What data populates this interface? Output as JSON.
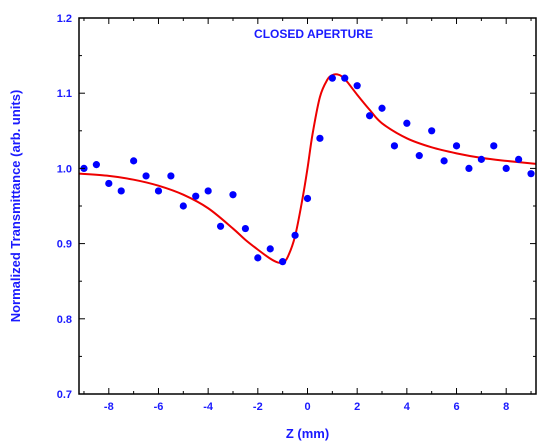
{
  "chart_data": {
    "type": "scatter",
    "title": "CLOSED APERTURE",
    "xlabel": "Z (mm)",
    "ylabel": "Normalized Transmittance (arb. units)",
    "xlim": [
      -9.2,
      9.2
    ],
    "ylim": [
      0.7,
      1.2
    ],
    "xticks": [
      -8,
      -6,
      -4,
      -2,
      0,
      2,
      4,
      6,
      8
    ],
    "yticks": [
      0.7,
      0.8,
      0.9,
      1.0,
      1.1,
      1.2
    ],
    "grid": false,
    "colors": {
      "points": "#0000ff",
      "fit": "#ee0000",
      "text": "#1a1aff",
      "axis": "#000000"
    },
    "series": [
      {
        "kind": "points",
        "x": [
          -9.0,
          -8.5,
          -8.0,
          -7.5,
          -7.0,
          -6.5,
          -6.0,
          -5.5,
          -5.0,
          -4.5,
          -4.0,
          -3.5,
          -3.0,
          -2.5,
          -2.0,
          -1.5,
          -1.0,
          -0.5,
          0.0,
          0.5,
          1.0,
          1.5,
          2.0,
          2.5,
          3.0,
          3.5,
          4.0,
          4.5,
          5.0,
          5.5,
          6.0,
          6.5,
          7.0,
          7.5,
          8.0,
          8.5,
          9.0
        ],
        "y": [
          1.0,
          1.005,
          0.98,
          0.97,
          1.01,
          0.99,
          0.97,
          0.99,
          0.95,
          0.963,
          0.97,
          0.923,
          0.965,
          0.92,
          0.881,
          0.893,
          0.876,
          0.911,
          0.96,
          1.04,
          1.12,
          1.12,
          1.11,
          1.07,
          1.08,
          1.03,
          1.06,
          1.017,
          1.05,
          1.01,
          1.03,
          1.0,
          1.012,
          1.03,
          1.0,
          1.012,
          0.993
        ]
      },
      {
        "kind": "fit",
        "x": [
          -9.2,
          -8.0,
          -7.0,
          -6.0,
          -5.0,
          -4.0,
          -3.0,
          -2.5,
          -2.0,
          -1.5,
          -1.2,
          -1.0,
          -0.8,
          -0.5,
          -0.2,
          0.0,
          0.2,
          0.5,
          0.8,
          1.0,
          1.2,
          1.4,
          1.6,
          2.0,
          2.5,
          3.0,
          4.0,
          5.0,
          6.0,
          7.0,
          8.0,
          9.2
        ],
        "y": [
          0.993,
          0.99,
          0.985,
          0.977,
          0.965,
          0.947,
          0.92,
          0.905,
          0.892,
          0.88,
          0.875,
          0.875,
          0.882,
          0.91,
          0.96,
          1.0,
          1.045,
          1.095,
          1.118,
          1.124,
          1.125,
          1.122,
          1.115,
          1.098,
          1.078,
          1.06,
          1.04,
          1.028,
          1.02,
          1.014,
          1.01,
          1.006
        ]
      }
    ]
  }
}
